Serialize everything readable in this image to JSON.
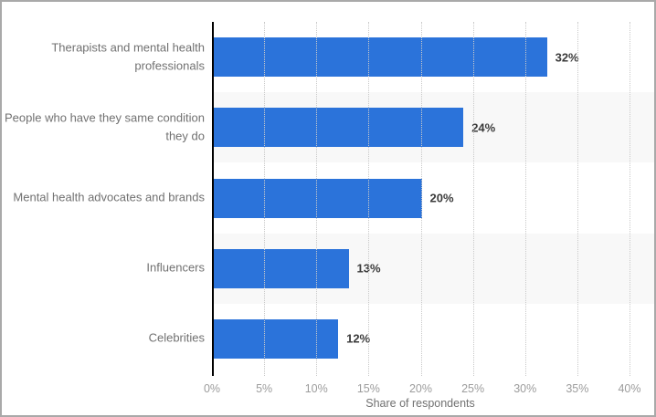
{
  "chart_data": {
    "type": "bar",
    "orientation": "horizontal",
    "title": "",
    "categories": [
      "Therapists and mental health professionals",
      "People who have they same condition they do",
      "Mental health advocates and brands",
      "Influencers",
      "Celebrities"
    ],
    "values": [
      32,
      24,
      20,
      13,
      12
    ],
    "value_labels": [
      "32%",
      "24%",
      "20%",
      "13%",
      "12%"
    ],
    "xlabel": "Share of respondents",
    "ylabel": "",
    "xlim": [
      0,
      40
    ],
    "x_ticks": [
      "0%",
      "5%",
      "10%",
      "15%",
      "20%",
      "25%",
      "30%",
      "35%",
      "40%"
    ],
    "x_tick_values": [
      0,
      5,
      10,
      15,
      20,
      25,
      30,
      35,
      40
    ],
    "grid": "vertical-dotted",
    "legend": "none",
    "colors": {
      "bar": "#2b73da",
      "row_stripe": "#f8f8f8",
      "axis_line": "#000000",
      "gridline": "#c9c9c9",
      "category_label": "#717171",
      "value_label": "#3b3b3b",
      "tick_label": "#9c9c9c",
      "axis_title": "#717171",
      "frame_border": "#a9a9a9",
      "background": "#ffffff"
    }
  }
}
